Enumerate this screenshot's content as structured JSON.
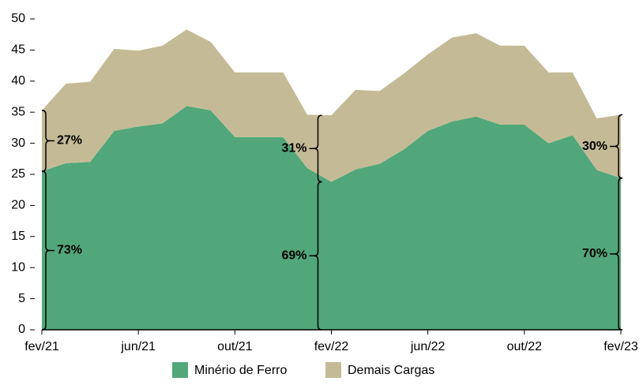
{
  "chart_data": {
    "type": "stacked_area",
    "categories": [
      "fev/21",
      null,
      null,
      null,
      "jun/21",
      null,
      null,
      null,
      "out/21",
      null,
      null,
      null,
      "fev/22",
      null,
      null,
      null,
      "jun/22",
      null,
      null,
      null,
      "out/22",
      null,
      null,
      null,
      "fev/23"
    ],
    "series": [
      {
        "name": "Minério de Ferro",
        "color": "#52a77a",
        "values": [
          25.5,
          26.8,
          27,
          32,
          32.7,
          33.2,
          36,
          35.3,
          31,
          31,
          31,
          26,
          23.8,
          25.8,
          26.7,
          29,
          32,
          33.5,
          34.3,
          33,
          33,
          30,
          31.3,
          25.7,
          24.4
        ]
      },
      {
        "name": "Demais Cargas",
        "color": "#c4bb96",
        "values": [
          9.8,
          12.8,
          12.9,
          13.2,
          12.2,
          12.5,
          12.3,
          11,
          10.4,
          10.4,
          10.4,
          8.6,
          10.7,
          12.8,
          11.7,
          12.2,
          12.3,
          13.5,
          13.4,
          12.7,
          12.7,
          11.4,
          10.1,
          8.3,
          10.2
        ]
      }
    ],
    "annotations": [
      "27%",
      "73%",
      "31%",
      "69%",
      "30%",
      "70%"
    ],
    "ylim": [
      0,
      50
    ],
    "yticks": [
      0,
      5,
      10,
      15,
      20,
      25,
      30,
      35,
      40,
      45,
      50
    ]
  }
}
